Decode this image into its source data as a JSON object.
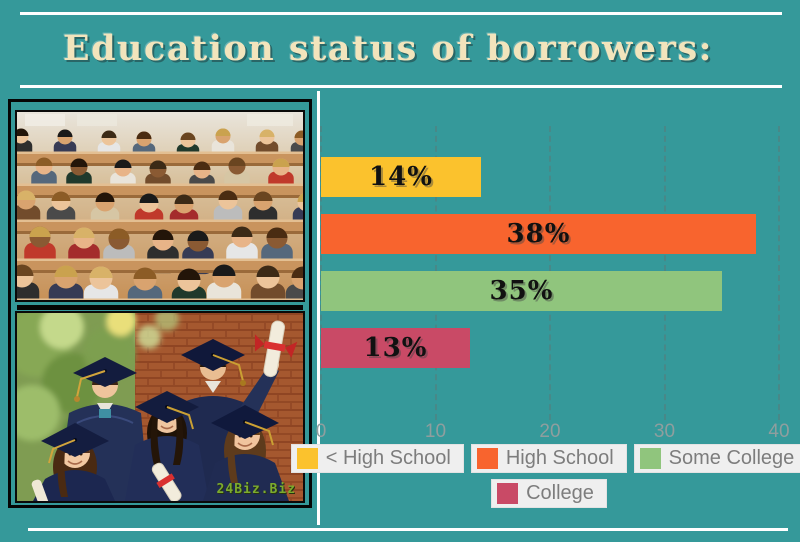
{
  "title": "Education status of borrowers:",
  "watermark": "24Biz.Biz",
  "chart_data": {
    "type": "bar",
    "orientation": "horizontal",
    "title": "Education status of borrowers:",
    "categories": [
      "< High School",
      "High School",
      "Some College",
      "College"
    ],
    "values": [
      14,
      38,
      35,
      13
    ],
    "value_labels": [
      "14%",
      "38%",
      "35%",
      "13%"
    ],
    "bar_colors": [
      "#fbc22d",
      "#f8642e",
      "#90c57d",
      "#c94a66"
    ],
    "xlabel": "",
    "ylabel": "",
    "xlim": [
      0,
      40
    ],
    "x_ticks": [
      "0",
      "10",
      "20",
      "30",
      "40"
    ],
    "grid": "dashed vertical gridlines at each x tick",
    "legend_position": "bottom",
    "legend_rows": [
      [
        0,
        1,
        2
      ],
      [
        3
      ]
    ]
  },
  "legend": {
    "items": [
      {
        "label": "< High School",
        "color": "#fbc22d"
      },
      {
        "label": "High School",
        "color": "#f8642e"
      },
      {
        "label": "Some College",
        "color": "#90c57d"
      },
      {
        "label": "College",
        "color": "#c94a66"
      }
    ]
  },
  "colors": {
    "background": "#35999a",
    "title_text": "#f2e4bc",
    "rule_lines": "#ffffff",
    "tick_text": "#8f9e9e",
    "legend_bg": "#efefef",
    "legend_text": "#7d7d7d",
    "bar_label": "#111111"
  }
}
